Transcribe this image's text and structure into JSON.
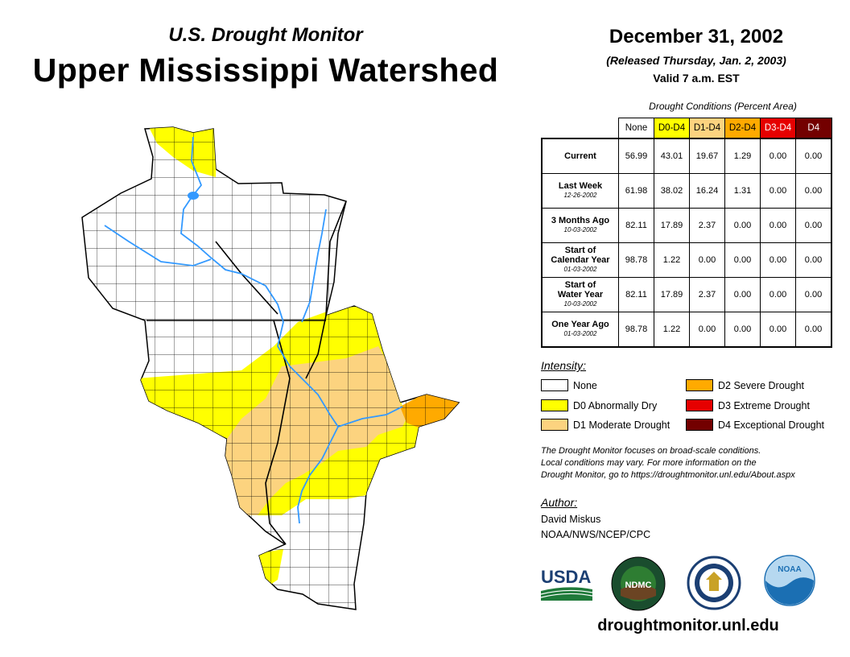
{
  "header": {
    "subtitle": "U.S. Drought Monitor",
    "title": "Upper Mississippi Watershed",
    "date": "December 31, 2002",
    "released": "(Released Thursday, Jan. 2, 2003)",
    "valid": "Valid 7 a.m. EST"
  },
  "table": {
    "caption": "Drought Conditions (Percent Area)",
    "columns": [
      "None",
      "D0-D4",
      "D1-D4",
      "D2-D4",
      "D3-D4",
      "D4"
    ],
    "rows": [
      {
        "label": "Current",
        "label2": "",
        "date": "",
        "values": [
          "56.99",
          "43.01",
          "19.67",
          "1.29",
          "0.00",
          "0.00"
        ]
      },
      {
        "label": "Last Week",
        "label2": "",
        "date": "12-26-2002",
        "values": [
          "61.98",
          "38.02",
          "16.24",
          "1.31",
          "0.00",
          "0.00"
        ]
      },
      {
        "label": "3 Months Ago",
        "label2": "",
        "date": "10-03-2002",
        "values": [
          "82.11",
          "17.89",
          "2.37",
          "0.00",
          "0.00",
          "0.00"
        ]
      },
      {
        "label": "Start of",
        "label2": "Calendar Year",
        "date": "01-03-2002",
        "values": [
          "98.78",
          "1.22",
          "0.00",
          "0.00",
          "0.00",
          "0.00"
        ]
      },
      {
        "label": "Start of",
        "label2": "Water Year",
        "date": "10-03-2002",
        "values": [
          "82.11",
          "17.89",
          "2.37",
          "0.00",
          "0.00",
          "0.00"
        ]
      },
      {
        "label": "One Year Ago",
        "label2": "",
        "date": "01-03-2002",
        "values": [
          "98.78",
          "1.22",
          "0.00",
          "0.00",
          "0.00",
          "0.00"
        ]
      }
    ]
  },
  "legend": {
    "title": "Intensity:",
    "items": [
      {
        "label": "None",
        "color": "#ffffff"
      },
      {
        "label": "D0 Abnormally Dry",
        "color": "#ffff00"
      },
      {
        "label": "D1 Moderate Drought",
        "color": "#fcd37f"
      },
      {
        "label": "D2 Severe Drought",
        "color": "#ffaa00"
      },
      {
        "label": "D3 Extreme Drought",
        "color": "#e60000"
      },
      {
        "label": "D4 Exceptional Drought",
        "color": "#730000"
      }
    ]
  },
  "note": {
    "line1": "The Drought Monitor focuses on broad-scale conditions.",
    "line2": "Local conditions may vary. For more information on the",
    "line3": "Drought Monitor, go to https://droughtmonitor.unl.edu/About.aspx"
  },
  "author": {
    "title": "Author:",
    "name": "David Miskus",
    "org": "NOAA/NWS/NCEP/CPC"
  },
  "logos": {
    "usda": "USDA",
    "ndmc": "NDMC",
    "noaa": "NOAA"
  },
  "website": "droughtmonitor.unl.edu",
  "colors": {
    "none": "#ffffff",
    "d0": "#ffff00",
    "d1": "#fcd37f",
    "d2": "#ffaa00",
    "d3": "#e60000",
    "d4": "#730000",
    "river": "#3399ff"
  }
}
